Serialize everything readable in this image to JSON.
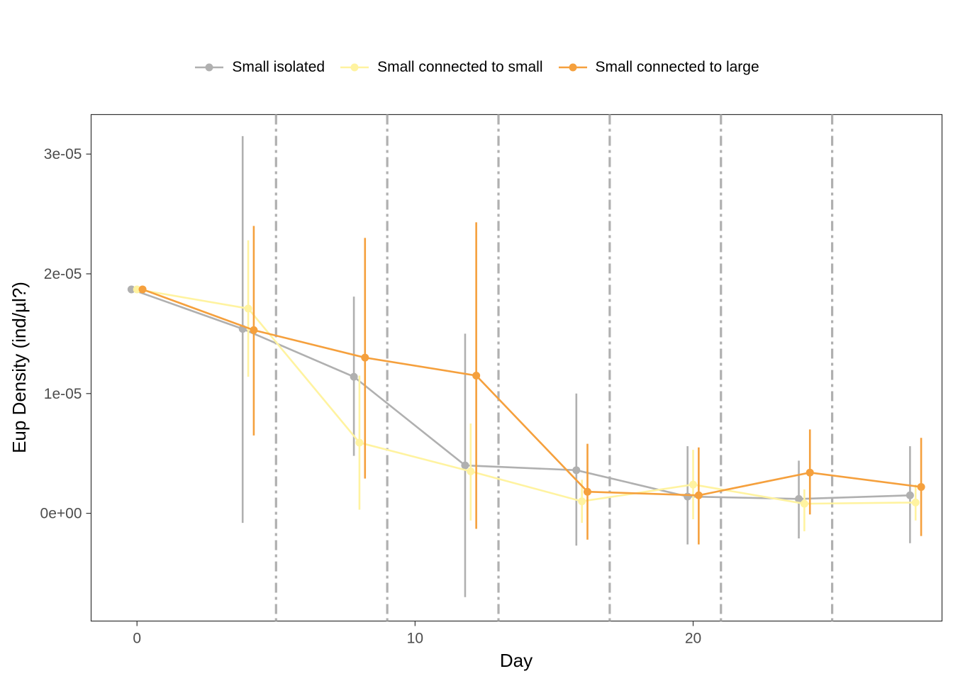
{
  "chart_data": {
    "type": "line",
    "title": "",
    "xlabel": "Day",
    "ylabel": "Eup Density (ind/µl?)",
    "xlim": [
      -1.65,
      28.95
    ],
    "ylim": [
      -9e-06,
      3.33e-05
    ],
    "x_ticks": [
      0,
      10,
      20
    ],
    "x_tick_labels": [
      "0",
      "10",
      "20"
    ],
    "y_ticks": [
      0,
      1e-05,
      2e-05,
      3e-05
    ],
    "y_tick_labels": [
      "0e+00",
      "1e-05",
      "2e-05",
      "3e-05"
    ],
    "vlines": [
      5,
      9,
      13,
      17,
      21,
      25
    ],
    "legend_position": "top",
    "series": [
      {
        "name": "Small isolated",
        "color": "#B0B0B0",
        "x": [
          -0.2,
          3.8,
          7.8,
          11.8,
          15.8,
          19.8,
          23.8,
          27.8
        ],
        "y": [
          1.87e-05,
          1.54e-05,
          1.14e-05,
          4e-06,
          3.6e-06,
          1.4e-06,
          1.2e-06,
          1.5e-06
        ],
        "ymin": [
          1.87e-05,
          -8e-07,
          4.8e-06,
          -7e-06,
          -2.7e-06,
          -2.6e-06,
          -2.1e-06,
          -2.5e-06
        ],
        "ymax": [
          1.87e-05,
          3.15e-05,
          1.81e-05,
          1.5e-05,
          1e-05,
          5.6e-06,
          4.4e-06,
          5.6e-06
        ]
      },
      {
        "name": "Small connected to small",
        "color": "#FFF3A0",
        "x": [
          0.0,
          4.0,
          8.0,
          12.0,
          16.0,
          20.0,
          24.0,
          28.0
        ],
        "y": [
          1.87e-05,
          1.71e-05,
          5.9e-06,
          3.5e-06,
          1e-06,
          2.4e-06,
          8e-07,
          9e-07
        ],
        "ymin": [
          1.87e-05,
          1.14e-05,
          3e-07,
          -6e-07,
          -8e-07,
          -5e-07,
          -1.5e-06,
          -6e-07
        ],
        "ymax": [
          1.87e-05,
          2.28e-05,
          1.15e-05,
          7.5e-06,
          2.8e-06,
          5.3e-06,
          2e-06,
          2.4e-06
        ]
      },
      {
        "name": "Small connected to large",
        "color": "#F5A03D",
        "x": [
          0.2,
          4.2,
          8.2,
          12.2,
          16.2,
          20.2,
          24.2,
          28.2
        ],
        "y": [
          1.87e-05,
          1.53e-05,
          1.3e-05,
          1.15e-05,
          1.8e-06,
          1.5e-06,
          3.4e-06,
          2.2e-06
        ],
        "ymin": [
          1.87e-05,
          6.5e-06,
          2.9e-06,
          -1.3e-06,
          -2.2e-06,
          -2.6e-06,
          -1e-07,
          -1.9e-06
        ],
        "ymax": [
          1.87e-05,
          2.4e-05,
          2.3e-05,
          2.43e-05,
          5.8e-06,
          5.5e-06,
          7e-06,
          6.3e-06
        ]
      }
    ]
  }
}
